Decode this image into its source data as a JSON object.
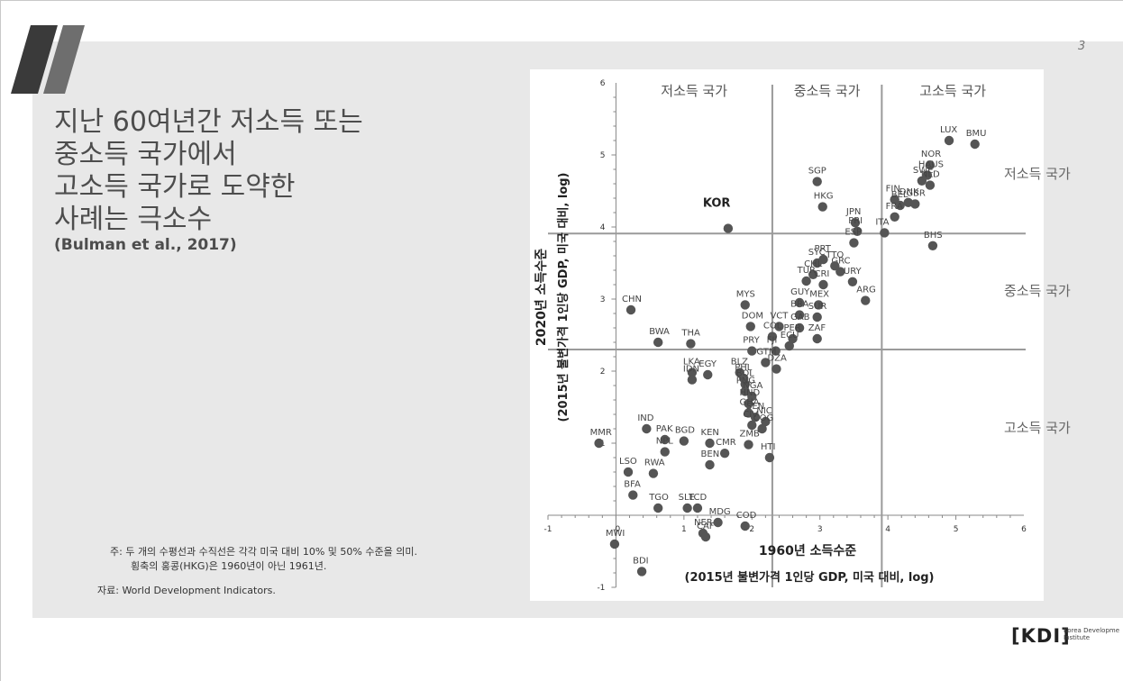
{
  "page_number": "3",
  "title_lines": [
    "지난 60여년간 저소득 또는",
    "중소득 국가에서",
    "고소득 국가로 도약한",
    "사례는 극소수"
  ],
  "citation": "(Bulman et al., 2017)",
  "note_lines": [
    "주: 두 개의 수평선과 수직선은 각각 미국 대비 10% 및 50% 수준을 의미.",
    "횡축의 홍콩(HKG)은 1960년이 아닌 1961년."
  ],
  "source": "자료: World Development Indicators.",
  "row_labels": [
    "저소득 국가",
    "중소득 국가",
    "고소득 국가"
  ],
  "logo": {
    "mark": "KDI",
    "text_line1": "Korea Developme",
    "text_line2": "Institute"
  },
  "colors": {
    "point": "#555555",
    "divider": "#9a9a9a",
    "axis": "#888888",
    "panel": "#e8e8e8",
    "title": "#4d4d4d"
  },
  "chart_data": {
    "type": "scatter",
    "xlabel_line1": "1960년 소득수준",
    "xlabel_line2": "(2015년 불변가격 1인당 GDP, 미국 대비, log)",
    "ylabel_line1": "2020년 소득수준",
    "ylabel_line2": "(2015년 불변가격 1인당 GDP, 미국 대비, log)",
    "xlim": [
      -1,
      6
    ],
    "ylim": [
      -1,
      6
    ],
    "xticks": [
      "-1",
      "0",
      "1",
      "2",
      "3",
      "4",
      "5",
      "6"
    ],
    "yticks": [
      "-1",
      "0",
      "1",
      "2",
      "3",
      "4",
      "5",
      "6"
    ],
    "col_labels": [
      "저소득 국가",
      "중소득 국가",
      "고소득 국가"
    ],
    "vlines": [
      2.3,
      3.91
    ],
    "hlines": [
      2.3,
      3.91
    ],
    "highlight": "KOR",
    "points": [
      {
        "label": "LUX",
        "x": 4.9,
        "y": 5.2
      },
      {
        "label": "BMU",
        "x": 5.28,
        "y": 5.15
      },
      {
        "label": "NOR",
        "x": 4.62,
        "y": 4.86
      },
      {
        "label": "HAUS",
        "x": 4.58,
        "y": 4.72
      },
      {
        "label": "SWE",
        "x": 4.5,
        "y": 4.64
      },
      {
        "label": "NLD",
        "x": 4.62,
        "y": 4.58
      },
      {
        "label": "FIN",
        "x": 4.1,
        "y": 4.38
      },
      {
        "label": "BEL",
        "x": 4.18,
        "y": 4.3
      },
      {
        "label": "DNK",
        "x": 4.3,
        "y": 4.34
      },
      {
        "label": "GBR",
        "x": 4.4,
        "y": 4.32
      },
      {
        "label": "FRA",
        "x": 4.1,
        "y": 4.14
      },
      {
        "label": "ITA",
        "x": 3.95,
        "y": 3.92
      },
      {
        "label": "BHS",
        "x": 4.66,
        "y": 3.74
      },
      {
        "label": "SGP",
        "x": 2.96,
        "y": 4.63
      },
      {
        "label": "HKG",
        "x": 3.04,
        "y": 4.28
      },
      {
        "label": "JPN",
        "x": 3.52,
        "y": 4.06
      },
      {
        "label": "PRI",
        "x": 3.55,
        "y": 3.94
      },
      {
        "label": "ESP",
        "x": 3.5,
        "y": 3.78
      },
      {
        "label": "KOR",
        "x": 1.65,
        "y": 3.98
      },
      {
        "label": "PRT",
        "x": 3.05,
        "y": 3.55
      },
      {
        "label": "GRC",
        "x": 3.3,
        "y": 3.38
      },
      {
        "label": "SYC",
        "x": 2.96,
        "y": 3.5
      },
      {
        "label": "TTO",
        "x": 3.22,
        "y": 3.46
      },
      {
        "label": "URY",
        "x": 3.48,
        "y": 3.24
      },
      {
        "label": "CHL",
        "x": 2.9,
        "y": 3.34
      },
      {
        "label": "TUR",
        "x": 2.8,
        "y": 3.25
      },
      {
        "label": "CRI",
        "x": 3.05,
        "y": 3.2
      },
      {
        "label": "ARG",
        "x": 3.67,
        "y": 2.98
      },
      {
        "label": "MYS",
        "x": 1.9,
        "y": 2.92
      },
      {
        "label": "GUY",
        "x": 2.7,
        "y": 2.95
      },
      {
        "label": "MEX",
        "x": 2.98,
        "y": 2.92
      },
      {
        "label": "BRA",
        "x": 2.7,
        "y": 2.78
      },
      {
        "label": "SUR",
        "x": 2.96,
        "y": 2.75
      },
      {
        "label": "GAB",
        "x": 2.7,
        "y": 2.6
      },
      {
        "label": "VCT",
        "x": 2.4,
        "y": 2.62
      },
      {
        "label": "COL",
        "x": 2.3,
        "y": 2.48
      },
      {
        "label": "PER",
        "x": 2.6,
        "y": 2.45
      },
      {
        "label": "ZAF",
        "x": 2.96,
        "y": 2.45
      },
      {
        "label": "ECU",
        "x": 2.55,
        "y": 2.35
      },
      {
        "label": "DOM",
        "x": 1.98,
        "y": 2.62
      },
      {
        "label": "PRY",
        "x": 2.0,
        "y": 2.28
      },
      {
        "label": "FJI",
        "x": 2.35,
        "y": 2.28
      },
      {
        "label": "GTM",
        "x": 2.2,
        "y": 2.12
      },
      {
        "label": "DZA",
        "x": 2.36,
        "y": 2.03
      },
      {
        "label": "CHN",
        "x": 0.22,
        "y": 2.85
      },
      {
        "label": "BWA",
        "x": 0.62,
        "y": 2.4
      },
      {
        "label": "THA",
        "x": 1.1,
        "y": 2.38
      },
      {
        "label": "LKA",
        "x": 1.12,
        "y": 1.98
      },
      {
        "label": "EGY",
        "x": 1.35,
        "y": 1.95
      },
      {
        "label": "IDN",
        "x": 1.12,
        "y": 1.88
      },
      {
        "label": "BLZ",
        "x": 1.82,
        "y": 1.98
      },
      {
        "label": "PHL",
        "x": 1.88,
        "y": 1.9
      },
      {
        "label": "BOL",
        "x": 1.9,
        "y": 1.82
      },
      {
        "label": "PNG",
        "x": 1.9,
        "y": 1.72
      },
      {
        "label": "NGA",
        "x": 2.0,
        "y": 1.65
      },
      {
        "label": "HND",
        "x": 1.95,
        "y": 1.55
      },
      {
        "label": "GHA",
        "x": 1.95,
        "y": 1.42
      },
      {
        "label": "SEN",
        "x": 2.05,
        "y": 1.36
      },
      {
        "label": "NIC",
        "x": 2.2,
        "y": 1.3
      },
      {
        "label": "CIV",
        "x": 2.0,
        "y": 1.25
      },
      {
        "label": "COG",
        "x": 2.15,
        "y": 1.2
      },
      {
        "label": "ZMB",
        "x": 1.95,
        "y": 0.98
      },
      {
        "label": "HTI",
        "x": 2.26,
        "y": 0.8
      },
      {
        "label": "MMR",
        "x": -0.25,
        "y": 1.0
      },
      {
        "label": "IND",
        "x": 0.45,
        "y": 1.2
      },
      {
        "label": "PAK",
        "x": 0.72,
        "y": 1.05
      },
      {
        "label": "BGD",
        "x": 1.0,
        "y": 1.03
      },
      {
        "label": "KEN",
        "x": 1.38,
        "y": 1.0
      },
      {
        "label": "CMR",
        "x": 1.6,
        "y": 0.86
      },
      {
        "label": "BEN",
        "x": 1.38,
        "y": 0.7
      },
      {
        "label": "LSO",
        "x": 0.18,
        "y": 0.6
      },
      {
        "label": "NPL",
        "x": 0.72,
        "y": 0.88
      },
      {
        "label": "RWA",
        "x": 0.55,
        "y": 0.58
      },
      {
        "label": "BFA",
        "x": 0.25,
        "y": 0.28
      },
      {
        "label": "TGO",
        "x": 0.62,
        "y": 0.1
      },
      {
        "label": "SLE",
        "x": 1.05,
        "y": 0.1
      },
      {
        "label": "TCD",
        "x": 1.2,
        "y": 0.1
      },
      {
        "label": "NER",
        "x": 1.28,
        "y": -0.25
      },
      {
        "label": "MDG",
        "x": 1.5,
        "y": -0.1
      },
      {
        "label": "CAF",
        "x": 1.32,
        "y": -0.3
      },
      {
        "label": "COD",
        "x": 1.9,
        "y": -0.15
      },
      {
        "label": "MWI",
        "x": -0.02,
        "y": -0.4
      },
      {
        "label": "BDI",
        "x": 0.38,
        "y": -0.78
      }
    ]
  }
}
